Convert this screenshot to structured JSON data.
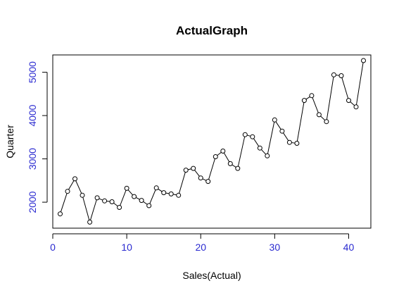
{
  "chart_data": {
    "type": "line",
    "title": "ActualGraph",
    "xlabel": "Sales(Actual)",
    "ylabel": "Quarter",
    "xlim": [
      0,
      43
    ],
    "ylim": [
      1400,
      5400
    ],
    "x_ticks": [
      0,
      10,
      20,
      30,
      40
    ],
    "y_ticks": [
      2000,
      3000,
      4000,
      5000
    ],
    "x_tick_labels": [
      "0",
      "10",
      "20",
      "30",
      "40"
    ],
    "y_tick_labels": [
      "2000",
      "3000",
      "4000",
      "5000"
    ],
    "grid": false,
    "tick_label_color": "#2a2ad0",
    "line_color": "#000000",
    "marker": "open-circle",
    "series": [
      {
        "x": [
          1,
          2,
          3,
          4,
          5,
          6,
          7,
          8,
          9,
          10,
          11,
          12,
          13,
          14,
          15,
          16,
          17,
          18,
          19,
          20,
          21,
          22,
          23,
          24,
          25,
          26,
          27,
          28,
          29,
          30,
          31,
          32,
          33,
          34,
          35,
          36,
          37,
          38,
          39,
          40,
          41,
          42
        ],
        "values": [
          1730,
          2250,
          2540,
          2160,
          1540,
          2100,
          2030,
          2010,
          1880,
          2320,
          2130,
          2040,
          1920,
          2330,
          2220,
          2190,
          2160,
          2740,
          2780,
          2560,
          2480,
          3050,
          3180,
          2890,
          2780,
          3560,
          3510,
          3250,
          3070,
          3900,
          3640,
          3380,
          3360,
          4350,
          4460,
          4020,
          3860,
          4940,
          4920,
          4350,
          4200,
          5270
        ]
      }
    ]
  }
}
